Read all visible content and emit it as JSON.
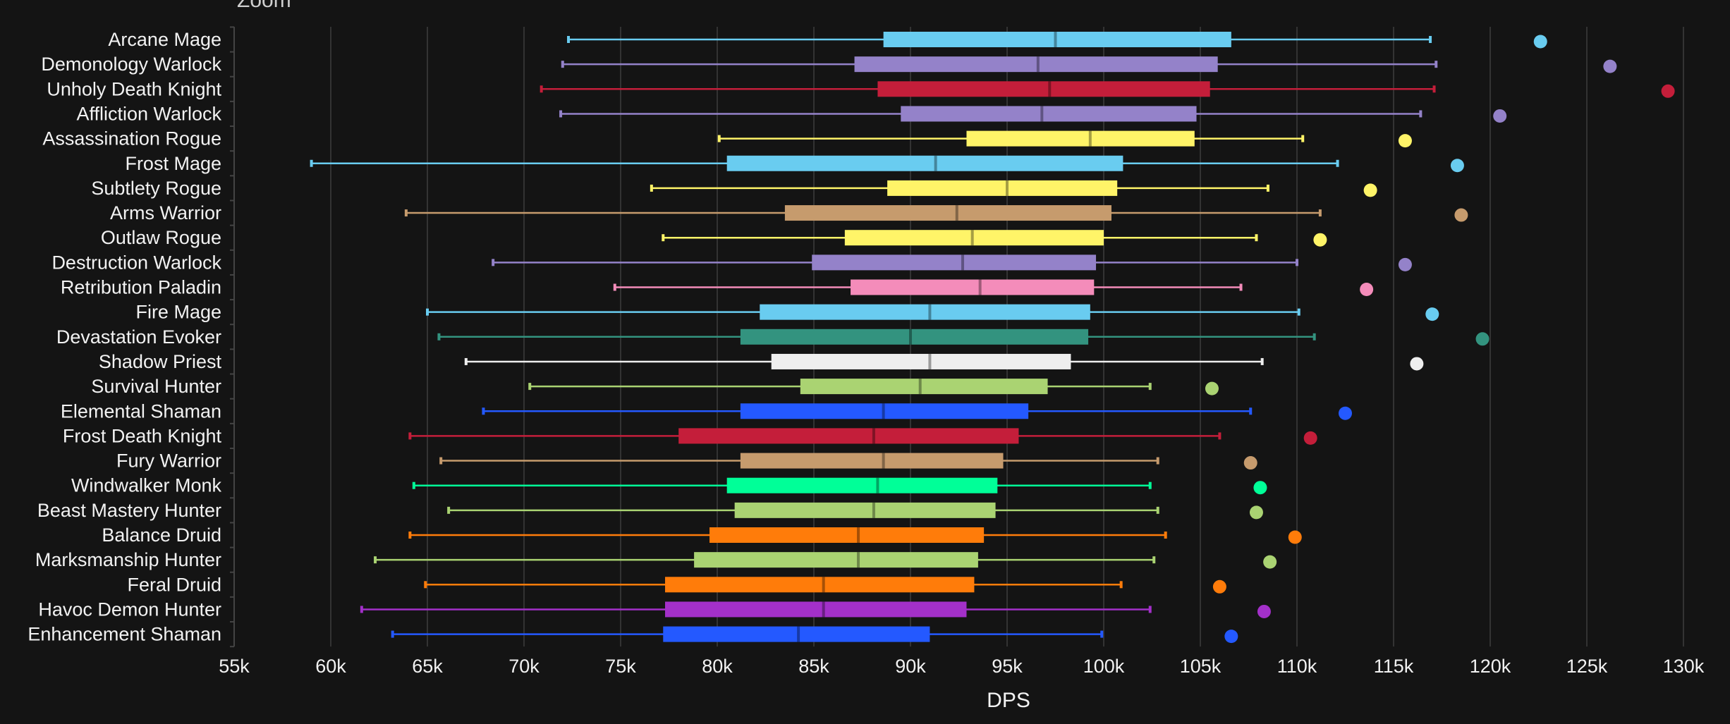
{
  "zoom_label": "Zoom",
  "chart_data": {
    "type": "boxplot",
    "orientation": "horizontal",
    "xlabel": "DPS",
    "xlim": [
      55000,
      130000
    ],
    "xticks": [
      "55k",
      "60k",
      "65k",
      "70k",
      "75k",
      "80k",
      "85k",
      "90k",
      "95k",
      "100k",
      "105k",
      "110k",
      "115k",
      "120k",
      "125k",
      "130k"
    ],
    "grid": true,
    "legend": "none",
    "background": "#141414",
    "series": [
      {
        "name": "Arcane Mage",
        "color": "#69ccf0",
        "min": 72300,
        "q1": 88600,
        "median": 97500,
        "q3": 106600,
        "max": 116900,
        "outlier": 122600
      },
      {
        "name": "Demonology Warlock",
        "color": "#9482c9",
        "min": 72000,
        "q1": 87100,
        "median": 96600,
        "q3": 105900,
        "max": 117200,
        "outlier": 126200
      },
      {
        "name": "Unholy Death Knight",
        "color": "#c41e3a",
        "min": 70900,
        "q1": 88300,
        "median": 97200,
        "q3": 105500,
        "max": 117100,
        "outlier": 129200
      },
      {
        "name": "Affliction Warlock",
        "color": "#9482c9",
        "min": 71900,
        "q1": 89500,
        "median": 96800,
        "q3": 104800,
        "max": 116400,
        "outlier": 120500
      },
      {
        "name": "Assassination Rogue",
        "color": "#fff468",
        "min": 80100,
        "q1": 92900,
        "median": 99300,
        "q3": 104700,
        "max": 110300,
        "outlier": 115600
      },
      {
        "name": "Frost Mage",
        "color": "#69ccf0",
        "min": 59000,
        "q1": 80500,
        "median": 91300,
        "q3": 101000,
        "max": 112100,
        "outlier": 118300
      },
      {
        "name": "Subtlety Rogue",
        "color": "#fff468",
        "min": 76600,
        "q1": 88800,
        "median": 95000,
        "q3": 100700,
        "max": 108500,
        "outlier": 113800
      },
      {
        "name": "Arms Warrior",
        "color": "#c69b6d",
        "min": 63900,
        "q1": 83500,
        "median": 92400,
        "q3": 100400,
        "max": 111200,
        "outlier": 118500
      },
      {
        "name": "Outlaw Rogue",
        "color": "#fff468",
        "min": 77200,
        "q1": 86600,
        "median": 93200,
        "q3": 100000,
        "max": 107900,
        "outlier": 111200
      },
      {
        "name": "Destruction Warlock",
        "color": "#9482c9",
        "min": 68400,
        "q1": 84900,
        "median": 92700,
        "q3": 99600,
        "max": 110000,
        "outlier": 115600
      },
      {
        "name": "Retribution Paladin",
        "color": "#f48cba",
        "min": 74700,
        "q1": 86900,
        "median": 93600,
        "q3": 99500,
        "max": 107100,
        "outlier": 113600
      },
      {
        "name": "Fire Mage",
        "color": "#69ccf0",
        "min": 65000,
        "q1": 82200,
        "median": 91000,
        "q3": 99300,
        "max": 110100,
        "outlier": 117000
      },
      {
        "name": "Devastation Evoker",
        "color": "#33937f",
        "min": 65600,
        "q1": 81200,
        "median": 90000,
        "q3": 99200,
        "max": 110900,
        "outlier": 119600
      },
      {
        "name": "Shadow Priest",
        "color": "#eeeeee",
        "min": 67000,
        "q1": 82800,
        "median": 91000,
        "q3": 98300,
        "max": 108200,
        "outlier": 116200
      },
      {
        "name": "Survival Hunter",
        "color": "#aad372",
        "min": 70300,
        "q1": 84300,
        "median": 90500,
        "q3": 97100,
        "max": 102400,
        "outlier": 105600
      },
      {
        "name": "Elemental Shaman",
        "color": "#2459ff",
        "min": 67900,
        "q1": 81200,
        "median": 88600,
        "q3": 96100,
        "max": 107600,
        "outlier": 112500
      },
      {
        "name": "Frost Death Knight",
        "color": "#c41e3a",
        "min": 64100,
        "q1": 78000,
        "median": 88100,
        "q3": 95600,
        "max": 106000,
        "outlier": 110700
      },
      {
        "name": "Fury Warrior",
        "color": "#c69b6d",
        "min": 65700,
        "q1": 81200,
        "median": 88600,
        "q3": 94800,
        "max": 102800,
        "outlier": 107600
      },
      {
        "name": "Windwalker Monk",
        "color": "#00ff98",
        "min": 64300,
        "q1": 80500,
        "median": 88300,
        "q3": 94500,
        "max": 102400,
        "outlier": 108100
      },
      {
        "name": "Beast Mastery Hunter",
        "color": "#aad372",
        "min": 66100,
        "q1": 80900,
        "median": 88100,
        "q3": 94400,
        "max": 102800,
        "outlier": 107900
      },
      {
        "name": "Balance Druid",
        "color": "#ff7c0a",
        "min": 64100,
        "q1": 79600,
        "median": 87300,
        "q3": 93800,
        "max": 103200,
        "outlier": 109900
      },
      {
        "name": "Marksmanship Hunter",
        "color": "#aad372",
        "min": 62300,
        "q1": 78800,
        "median": 87300,
        "q3": 93500,
        "max": 102600,
        "outlier": 108600
      },
      {
        "name": "Feral Druid",
        "color": "#ff7c0a",
        "min": 64900,
        "q1": 77300,
        "median": 85500,
        "q3": 93300,
        "max": 100900,
        "outlier": 106000
      },
      {
        "name": "Havoc Demon Hunter",
        "color": "#a330c9",
        "min": 61600,
        "q1": 77300,
        "median": 85500,
        "q3": 92900,
        "max": 102400,
        "outlier": 108300
      },
      {
        "name": "Enhancement Shaman",
        "color": "#2459ff",
        "min": 63200,
        "q1": 77200,
        "median": 84200,
        "q3": 91000,
        "max": 99900,
        "outlier": 106600
      }
    ]
  }
}
